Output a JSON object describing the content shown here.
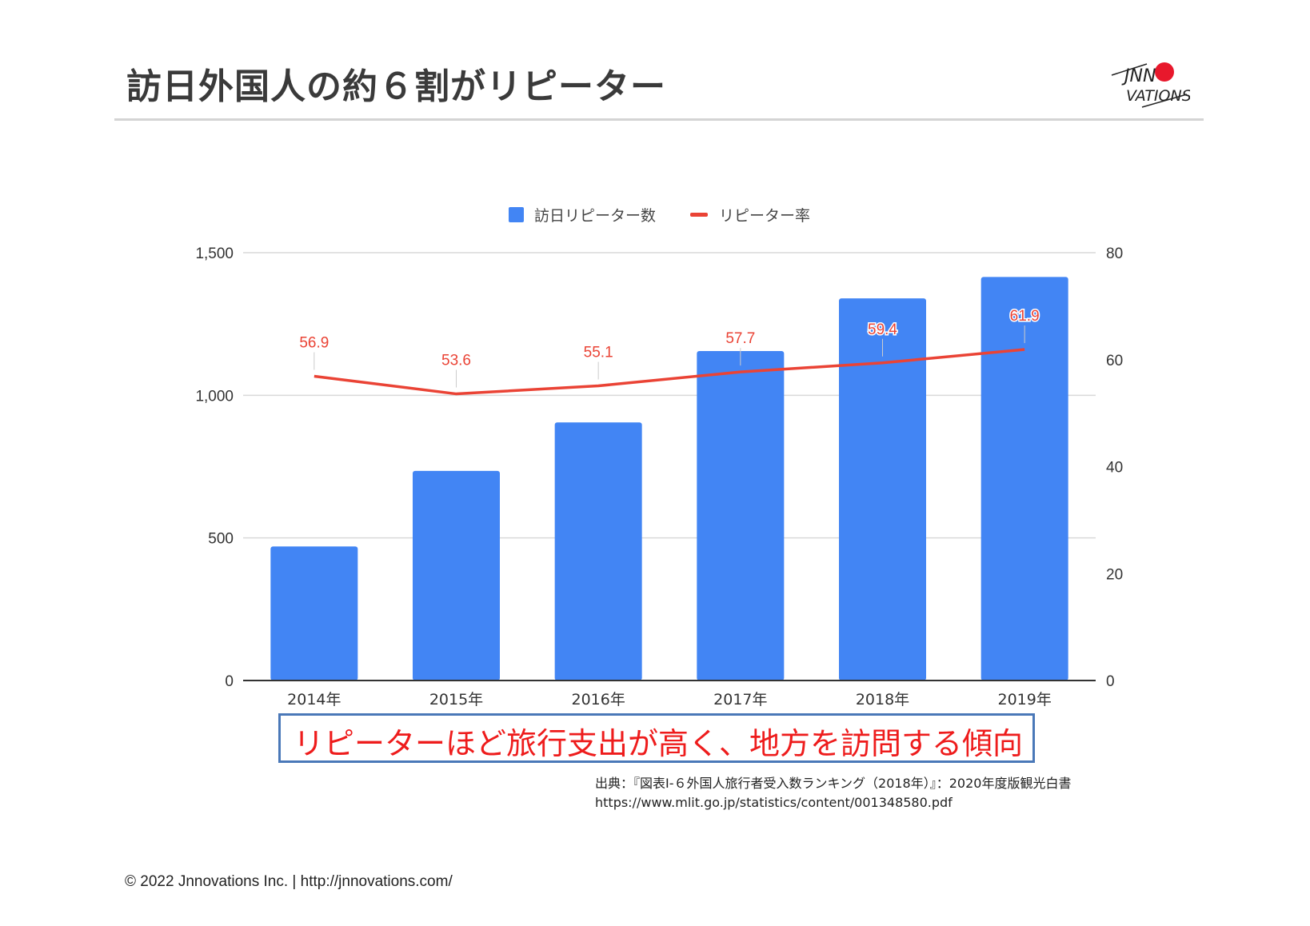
{
  "slide": {
    "title": "訪日外国人の約６割がリピーター",
    "callout": "リピーターほど旅行支出が高く、地方を訪問する傾向",
    "source_line1": "出典：『図表Ⅰ-６外国人旅行者受入数ランキング（2018年）』：2020年度版観光白書",
    "source_line2": "https://www.mlit.go.jp/statistics/content/001348580.pdf",
    "footer": "© 2022 Jnnovations  Inc.  |  http://jnnovations.com/",
    "logo_icon": "jnnovations-logo-icon"
  },
  "colors": {
    "bar": "#4285f4",
    "line": "#ea4335",
    "label": "#ea4335",
    "grid": "#d9d9d9",
    "axis": "#333333",
    "callout_border": "#4a78b8",
    "callout_text": "#ee1c1c",
    "logo_dot": "#e8182c"
  },
  "chart_data": {
    "type": "bar",
    "categories": [
      "2014年",
      "2015年",
      "2016年",
      "2017年",
      "2018年",
      "2019年"
    ],
    "series": [
      {
        "name": "訪日リピーター数",
        "type": "bar",
        "axis": "left",
        "values": [
          470,
          735,
          905,
          1155,
          1340,
          1415
        ]
      },
      {
        "name": "リピーター率",
        "type": "line",
        "axis": "right",
        "values": [
          56.9,
          53.6,
          55.1,
          57.7,
          59.4,
          61.9
        ],
        "labels": [
          "56.9",
          "53.6",
          "55.1",
          "57.7",
          "59.4",
          "61.9"
        ]
      }
    ],
    "y_left": {
      "min": 0,
      "max": 1500,
      "ticks": [
        0,
        500,
        1000,
        1500
      ],
      "tick_labels": [
        "0",
        "500",
        "1,000",
        "1,500"
      ]
    },
    "y_right": {
      "min": 0,
      "max": 80,
      "ticks": [
        0,
        20,
        40,
        60,
        80
      ],
      "tick_labels": [
        "0",
        "20",
        "40",
        "60",
        "80"
      ]
    },
    "legend_position": "top-center",
    "grid": true
  }
}
